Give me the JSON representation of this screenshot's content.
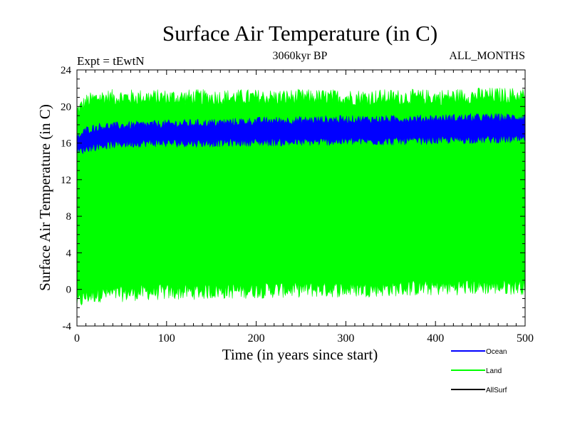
{
  "chart_data": {
    "type": "area",
    "title": "Surface Air Temperature (in C)",
    "subtitle": "3060kyr BP",
    "experiment": "Expt = tEwtN",
    "months": "ALL_MONTHS",
    "xlabel": "Time (in years since start)",
    "ylabel": "Surface Air Temperature (in C)",
    "xlim": [
      0,
      500
    ],
    "ylim": [
      -4,
      24
    ],
    "x_ticks": [
      "0",
      "100",
      "200",
      "300",
      "400",
      "500"
    ],
    "y_ticks": [
      "-4",
      "0",
      "4",
      "8",
      "12",
      "16",
      "20",
      "24"
    ],
    "grid": false,
    "legend_position": "bottom-right",
    "series": [
      {
        "name": "Land",
        "color": "#00ff00",
        "x": [
          0,
          10,
          25,
          50,
          75,
          100,
          150,
          200,
          250,
          300,
          350,
          400,
          450,
          500
        ],
        "upper": [
          19.5,
          20.5,
          21.0,
          21.0,
          21.0,
          21.0,
          21.0,
          21.0,
          21.0,
          21.0,
          21.0,
          21.0,
          21.2,
          21.2
        ],
        "lower": [
          -1.5,
          -0.8,
          -0.5,
          -0.5,
          -0.3,
          -0.3,
          -0.2,
          -0.1,
          0.0,
          0.0,
          0.1,
          0.2,
          0.3,
          0.3
        ]
      },
      {
        "name": "Ocean",
        "color": "#0000ff",
        "x": [
          0,
          10,
          25,
          50,
          75,
          100,
          150,
          200,
          250,
          300,
          350,
          400,
          450,
          500
        ],
        "upper": [
          16.5,
          17.4,
          17.8,
          17.9,
          18.0,
          18.1,
          18.2,
          18.4,
          18.5,
          18.6,
          18.6,
          18.7,
          18.8,
          18.8
        ],
        "lower": [
          15.0,
          15.4,
          15.7,
          15.9,
          16.0,
          16.0,
          16.0,
          16.1,
          16.1,
          16.2,
          16.2,
          16.3,
          16.4,
          16.4
        ]
      },
      {
        "name": "AllSurf",
        "color": "#000000",
        "x": [],
        "upper": [],
        "lower": []
      }
    ]
  }
}
